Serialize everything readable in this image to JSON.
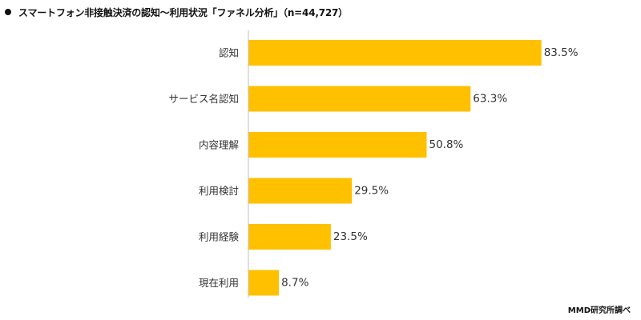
{
  "chart_data": {
    "type": "bar",
    "orientation": "horizontal",
    "title": "スマートフォン非接触決済の認知～利用状況「ファネル分析」（n=44,727）",
    "categories": [
      "認知",
      "サービス名認知",
      "内容理解",
      "利用検討",
      "利用経験",
      "現在利用"
    ],
    "values": [
      83.5,
      63.3,
      50.8,
      29.5,
      23.5,
      8.7
    ],
    "value_suffix": "%",
    "xlim": [
      0,
      100
    ],
    "grid": false,
    "legend": false,
    "bar_color": "#FFC000"
  },
  "source": "MMD研究所調べ"
}
